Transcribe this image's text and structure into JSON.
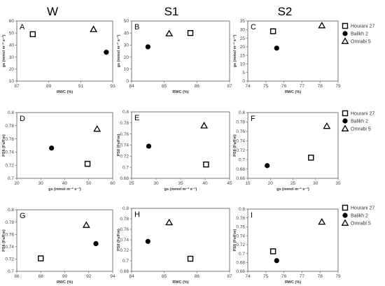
{
  "column_titles": [
    "W",
    "S1",
    "S2"
  ],
  "legend": [
    "Hourani 27",
    "Balikh 2",
    "Omrabi 5"
  ],
  "chart_data": [
    {
      "type": "scatter",
      "panel": "A",
      "xlabel": "RWC (%)",
      "ylabel": "gs (mmol m⁻² s⁻¹)",
      "xlim": [
        87,
        93
      ],
      "ylim": [
        10,
        60
      ],
      "xticks": [
        87,
        89,
        91,
        93
      ],
      "yticks": [
        10,
        20,
        30,
        40,
        50,
        60
      ],
      "series": [
        {
          "name": "Hourani 27",
          "x": [
            88.0
          ],
          "y": [
            49
          ]
        },
        {
          "name": "Balikh 2",
          "x": [
            92.6
          ],
          "y": [
            34
          ]
        },
        {
          "name": "Omrabi 5",
          "x": [
            91.8
          ],
          "y": [
            53
          ]
        }
      ]
    },
    {
      "type": "scatter",
      "panel": "B",
      "xlabel": "RWC (%)",
      "ylabel": "gs (mmol m⁻² s⁻¹)",
      "xlim": [
        84,
        87
      ],
      "ylim": [
        0,
        50
      ],
      "xticks": [
        84,
        85,
        86,
        87
      ],
      "yticks": [
        0,
        10,
        20,
        30,
        40,
        50
      ],
      "series": [
        {
          "name": "Hourani 27",
          "x": [
            85.8
          ],
          "y": [
            40
          ]
        },
        {
          "name": "Balikh 2",
          "x": [
            84.5
          ],
          "y": [
            28.5
          ]
        },
        {
          "name": "Omrabi 5",
          "x": [
            85.15
          ],
          "y": [
            39.5
          ]
        }
      ]
    },
    {
      "type": "scatter",
      "panel": "C",
      "xlabel": "RWC (%)",
      "ylabel": "gs (mmol m⁻² s⁻¹)",
      "xlim": [
        74,
        79
      ],
      "ylim": [
        0,
        35
      ],
      "xticks": [
        74,
        75,
        76,
        77,
        78,
        79
      ],
      "yticks": [
        0,
        5,
        10,
        15,
        20,
        25,
        30,
        35
      ],
      "series": [
        {
          "name": "Hourani 27",
          "x": [
            75.4
          ],
          "y": [
            29
          ]
        },
        {
          "name": "Balikh 2",
          "x": [
            75.6
          ],
          "y": [
            19.2
          ]
        },
        {
          "name": "Omrabi 5",
          "x": [
            78.1
          ],
          "y": [
            32.3
          ]
        }
      ]
    },
    {
      "type": "scatter",
      "panel": "D",
      "xlabel": "gs (mmol m⁻² s⁻¹)",
      "ylabel": "PSII (Fv/Fm)",
      "xlim": [
        20,
        60
      ],
      "ylim": [
        0.7,
        0.8
      ],
      "xticks": [
        20,
        30,
        40,
        50,
        60
      ],
      "yticks": [
        0.7,
        0.72,
        0.74,
        0.76,
        0.78,
        0.8
      ],
      "series": [
        {
          "name": "Hourani 27",
          "x": [
            49.5
          ],
          "y": [
            0.722
          ]
        },
        {
          "name": "Balikh 2",
          "x": [
            34.5
          ],
          "y": [
            0.746
          ]
        },
        {
          "name": "Omrabi 5",
          "x": [
            53.5
          ],
          "y": [
            0.775
          ]
        }
      ]
    },
    {
      "type": "scatter",
      "panel": "E",
      "xlabel": "gs (mmol m⁻² s⁻¹)",
      "ylabel": "PSII (Fv/Fm)",
      "xlim": [
        25,
        45
      ],
      "ylim": [
        0.68,
        0.8
      ],
      "xticks": [
        25,
        30,
        35,
        40,
        45
      ],
      "yticks": [
        0.68,
        0.7,
        0.72,
        0.74,
        0.76,
        0.78,
        0.8
      ],
      "series": [
        {
          "name": "Hourani 27",
          "x": [
            40.2
          ],
          "y": [
            0.705
          ]
        },
        {
          "name": "Balikh 2",
          "x": [
            28.5
          ],
          "y": [
            0.738
          ]
        },
        {
          "name": "Omrabi 5",
          "x": [
            39.8
          ],
          "y": [
            0.775
          ]
        }
      ]
    },
    {
      "type": "scatter",
      "panel": "F",
      "xlabel": "gs (mmol m⁻² s⁻¹)",
      "ylabel": "PSII (Fv/Fm)",
      "xlim": [
        15,
        35
      ],
      "ylim": [
        0.66,
        0.8
      ],
      "xticks": [
        15,
        20,
        25,
        30,
        35
      ],
      "yticks": [
        0.66,
        0.68,
        0.7,
        0.72,
        0.74,
        0.76,
        0.78,
        0.8
      ],
      "series": [
        {
          "name": "Hourani 27",
          "x": [
            29
          ],
          "y": [
            0.704
          ]
        },
        {
          "name": "Balikh 2",
          "x": [
            19.3
          ],
          "y": [
            0.687
          ]
        },
        {
          "name": "Omrabi 5",
          "x": [
            32.5
          ],
          "y": [
            0.771
          ]
        }
      ]
    },
    {
      "type": "scatter",
      "panel": "G",
      "xlabel": "RWC (%)",
      "ylabel": "PSII (Fv/Fm)",
      "xlim": [
        86,
        94
      ],
      "ylim": [
        0.7,
        0.8
      ],
      "xticks": [
        86,
        88,
        90,
        92,
        94
      ],
      "yticks": [
        0.7,
        0.72,
        0.74,
        0.76,
        0.78,
        0.8
      ],
      "series": [
        {
          "name": "Hourani 27",
          "x": [
            88.0
          ],
          "y": [
            0.721
          ]
        },
        {
          "name": "Balikh 2",
          "x": [
            92.6
          ],
          "y": [
            0.745
          ]
        },
        {
          "name": "Omrabi 5",
          "x": [
            91.8
          ],
          "y": [
            0.775
          ]
        }
      ]
    },
    {
      "type": "scatter",
      "panel": "H",
      "xlabel": "RWC (%)",
      "ylabel": "PSII (Fv/Fm)",
      "xlim": [
        84,
        87
      ],
      "ylim": [
        0.68,
        0.8
      ],
      "xticks": [
        84,
        85,
        86,
        87
      ],
      "yticks": [
        0.68,
        0.7,
        0.72,
        0.74,
        0.76,
        0.78,
        0.8
      ],
      "series": [
        {
          "name": "Hourani 27",
          "x": [
            85.8
          ],
          "y": [
            0.704
          ]
        },
        {
          "name": "Balikh 2",
          "x": [
            84.5
          ],
          "y": [
            0.737
          ]
        },
        {
          "name": "Omrabi 5",
          "x": [
            85.15
          ],
          "y": [
            0.773
          ]
        }
      ]
    },
    {
      "type": "scatter",
      "panel": "I",
      "xlabel": "RWC (%)",
      "ylabel": "PSII (Fv/Fm)",
      "xlim": [
        74,
        79
      ],
      "ylim": [
        0.66,
        0.8
      ],
      "xticks": [
        74,
        75,
        76,
        77,
        78,
        79
      ],
      "yticks": [
        0.66,
        0.68,
        0.7,
        0.72,
        0.74,
        0.76,
        0.78,
        0.8
      ],
      "series": [
        {
          "name": "Hourani 27",
          "x": [
            75.4
          ],
          "y": [
            0.705
          ]
        },
        {
          "name": "Balikh 2",
          "x": [
            75.6
          ],
          "y": [
            0.684
          ]
        },
        {
          "name": "Omrabi 5",
          "x": [
            78.1
          ],
          "y": [
            0.771
          ]
        }
      ]
    }
  ]
}
